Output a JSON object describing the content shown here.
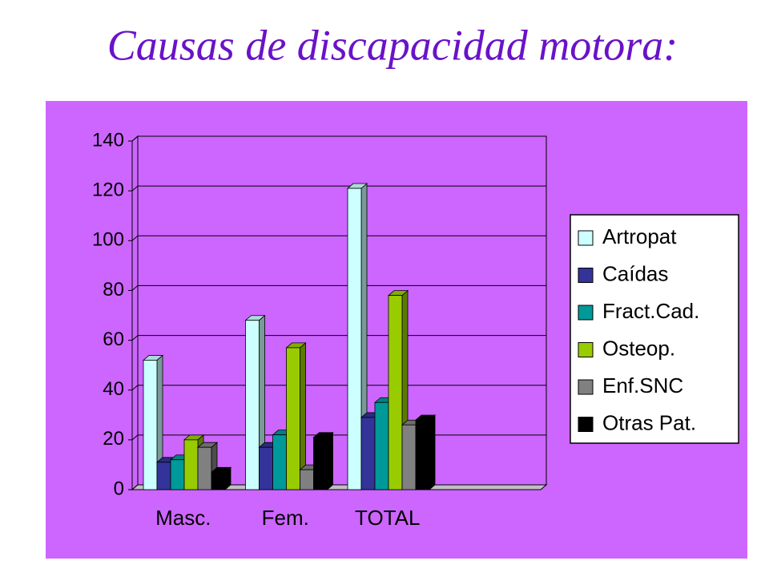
{
  "chart_data": {
    "type": "bar3d",
    "title": "Causas de discapacidad motora:",
    "categories": [
      "Masc.",
      "Fem.",
      "TOTAL",
      null
    ],
    "series": [
      {
        "name": "Artropat",
        "color": "#ccffff",
        "values": [
          52,
          68,
          121,
          null
        ]
      },
      {
        "name": "Caídas",
        "color": "#333399",
        "values": [
          11,
          17,
          29,
          null
        ]
      },
      {
        "name": "Fract.Cad.",
        "color": "#009999",
        "values": [
          12,
          22,
          35,
          null
        ]
      },
      {
        "name": "Osteop.",
        "color": "#99cc00",
        "values": [
          20,
          57,
          78,
          null
        ]
      },
      {
        "name": "Enf.SNC",
        "color": "#808080",
        "values": [
          17,
          8,
          26,
          null
        ]
      },
      {
        "name": "Otras Pat.",
        "color": "#000000",
        "values": [
          7,
          21,
          28,
          null
        ]
      }
    ],
    "ylim": [
      0,
      140
    ],
    "yticks": [
      0,
      20,
      40,
      60,
      80,
      100,
      120,
      140
    ],
    "grid": true,
    "legend": "right"
  }
}
